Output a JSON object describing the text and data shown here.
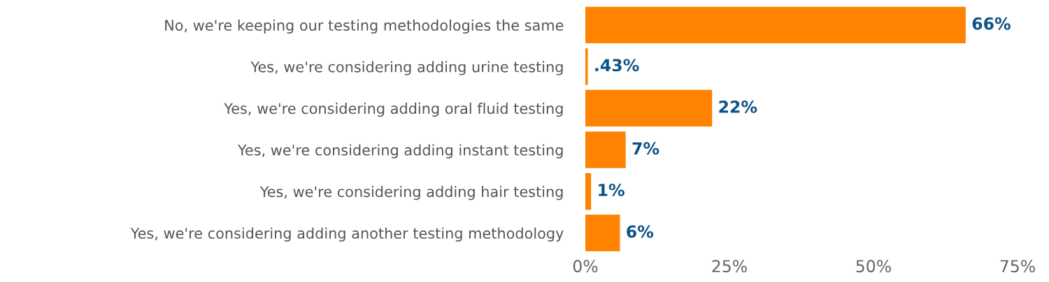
{
  "chart_data": {
    "type": "bar",
    "orientation": "horizontal",
    "categories": [
      "No, we're keeping our testing methodologies the same",
      "Yes, we're considering adding urine testing",
      "Yes, we're considering adding oral fluid testing",
      "Yes, we're considering adding instant testing",
      "Yes, we're considering adding hair testing",
      "Yes, we're considering adding another testing methodology"
    ],
    "values": [
      66,
      0.43,
      22,
      7,
      1,
      6
    ],
    "value_labels": [
      "66%",
      ".43%",
      "22%",
      "7%",
      "1%",
      "6%"
    ],
    "color": "#ff8200",
    "xlim": [
      0,
      75
    ],
    "xticks": [
      {
        "value": 0,
        "label": "0%"
      },
      {
        "value": 25,
        "label": "25%"
      },
      {
        "value": 50,
        "label": "50%"
      },
      {
        "value": 75,
        "label": "75%"
      }
    ],
    "grid": false,
    "legend": false
  }
}
